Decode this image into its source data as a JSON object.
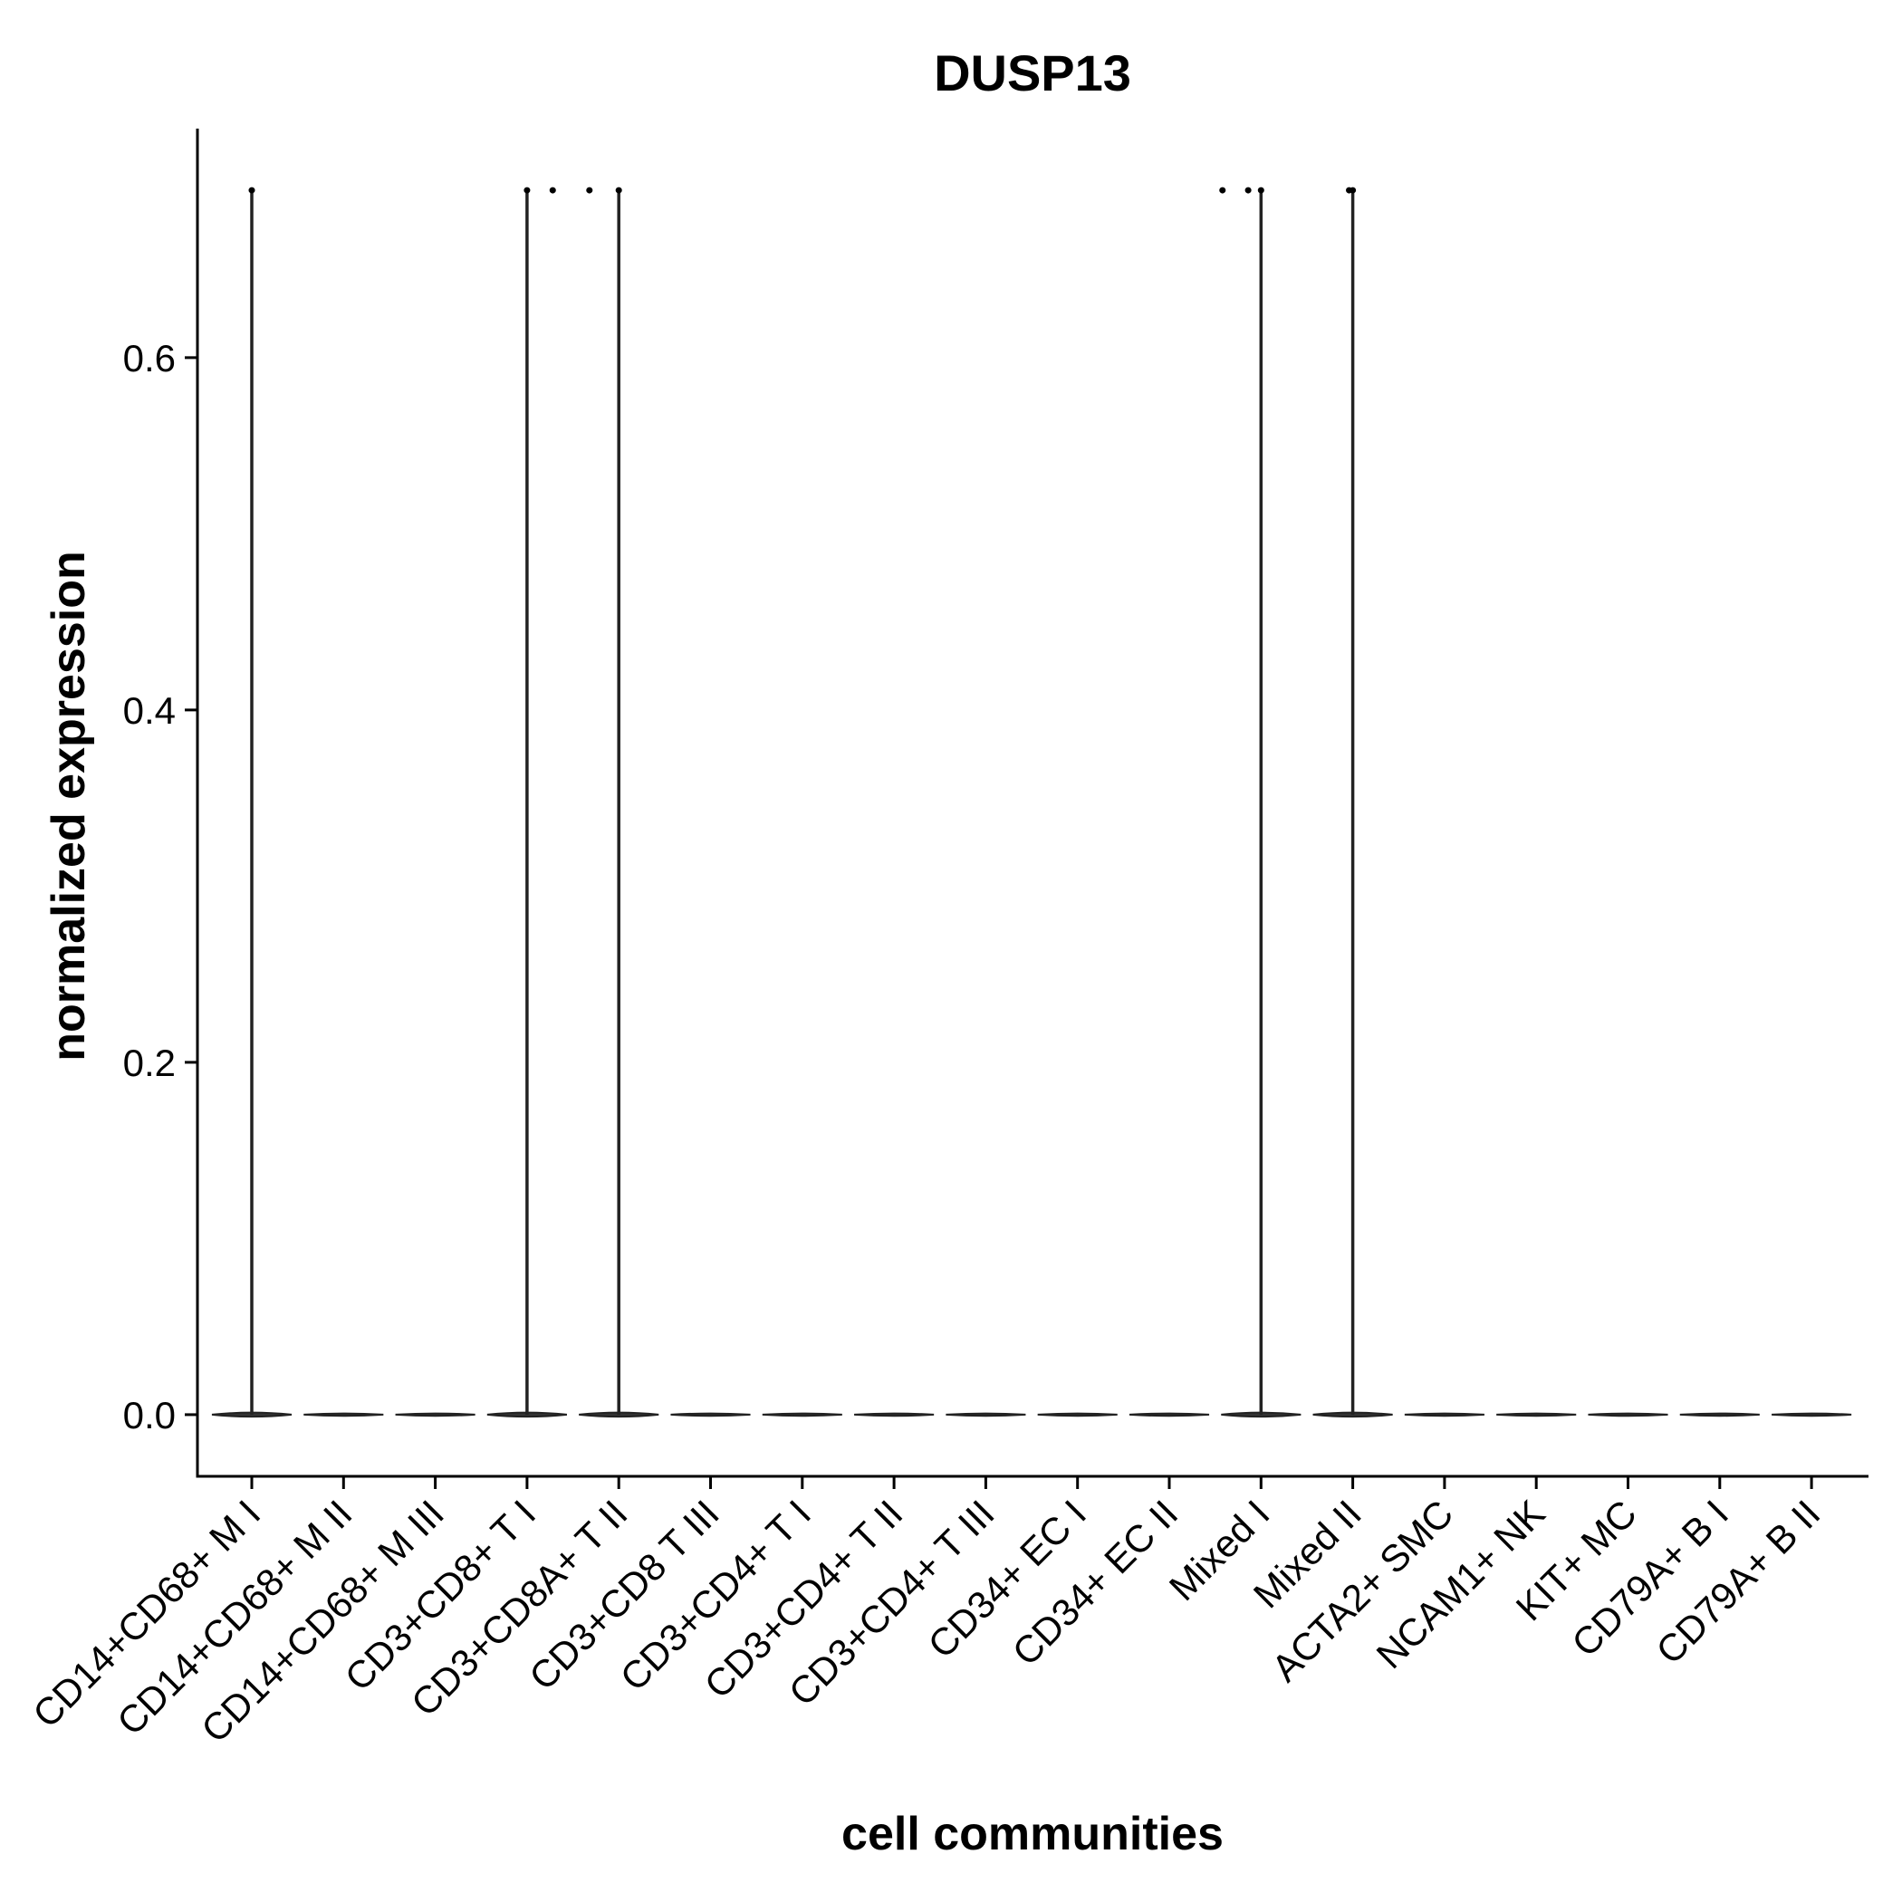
{
  "chart_data": {
    "type": "violin",
    "title": "DUSP13",
    "xlabel": "cell communities",
    "ylabel": "normalized expression",
    "ylim": [
      -0.035,
      0.73
    ],
    "yticks": [
      0.0,
      0.2,
      0.4,
      0.6
    ],
    "ytick_labels": [
      "0.0",
      "0.2",
      "0.4",
      "0.6"
    ],
    "grid": false,
    "legend": "none",
    "categories": [
      "CD14+CD68+ M I",
      "CD14+CD68+ M II",
      "CD14+CD68+ M III",
      "CD3+CD8+ T I",
      "CD3+CD8A+ T II",
      "CD3+CD8 T III",
      "CD3+CD4+ T I",
      "CD3+CD4+ T II",
      "CD3+CD4+ T III",
      "CD34+ EC I",
      "CD34+ EC II",
      "Mixed I",
      "Mixed II",
      "ACTA2+ SMC",
      "NCAM1+ NK",
      "KIT+ MC",
      "CD79A+ B I",
      "CD79A+ B II"
    ],
    "max_values": [
      0.695,
      0,
      0,
      0.695,
      0.695,
      0,
      0,
      0,
      0,
      0,
      0,
      0.695,
      0.695,
      0,
      0,
      0,
      0,
      0
    ],
    "outlier_points": [
      {
        "category": 0,
        "y": 0.695
      },
      {
        "category": 3,
        "y": 0.695
      },
      {
        "category": 3,
        "y": 0.695,
        "jitter": 0.28
      },
      {
        "category": 4,
        "y": 0.695,
        "jitter": -0.32
      },
      {
        "category": 4,
        "y": 0.695
      },
      {
        "category": 11,
        "y": 0.695,
        "jitter": -0.42
      },
      {
        "category": 11,
        "y": 0.695,
        "jitter": -0.14
      },
      {
        "category": 11,
        "y": 0.695
      },
      {
        "category": 12,
        "y": 0.695,
        "jitter": -0.04
      },
      {
        "category": 12,
        "y": 0.695
      }
    ]
  }
}
